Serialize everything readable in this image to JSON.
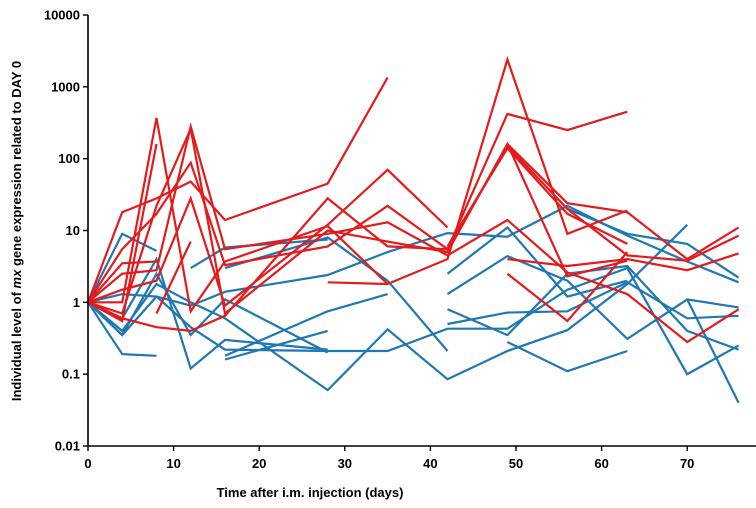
{
  "chart_data": {
    "type": "line",
    "xlabel": "Time after i.m. injection (days)",
    "ylabel_parts": [
      "Individual level of ",
      "mx",
      " gene expression related to DAY 0"
    ],
    "y_scale": "log",
    "xlim": [
      0,
      76
    ],
    "ylim": [
      0.01,
      10000
    ],
    "x_ticks": [
      0,
      10,
      20,
      30,
      40,
      50,
      60,
      70
    ],
    "y_ticks": [
      0.01,
      0.1,
      1,
      10,
      100,
      1000,
      10000
    ],
    "y_tick_labels": [
      "0.01",
      "0.1",
      "1",
      "10",
      "100",
      "1000",
      "10000"
    ],
    "grid": false,
    "legend": "none",
    "series_colors": {
      "blue": "#1f77b4",
      "red": "#e41a1c"
    },
    "series": [
      {
        "color": "blue",
        "points": [
          [
            0,
            1
          ],
          [
            4,
            0.35
          ],
          [
            8,
            2.5
          ],
          [
            12,
            0.35
          ],
          [
            16,
            1.1
          ],
          [
            28,
            0.2
          ]
        ]
      },
      {
        "color": "blue",
        "points": [
          [
            0,
            1
          ],
          [
            4,
            0.19
          ],
          [
            8,
            0.18
          ]
        ]
      },
      {
        "color": "blue",
        "points": [
          [
            0,
            1
          ],
          [
            4,
            0.6
          ],
          [
            8,
            4.0
          ],
          [
            12,
            0.12
          ],
          [
            16,
            0.3
          ],
          [
            28,
            0.22
          ]
        ]
      },
      {
        "color": "blue",
        "points": [
          [
            0,
            1
          ],
          [
            4,
            9.0
          ],
          [
            8,
            5.2
          ]
        ]
      },
      {
        "color": "blue",
        "points": [
          [
            0,
            1
          ],
          [
            4,
            1.3
          ],
          [
            8,
            1.2
          ],
          [
            12,
            0.9
          ],
          [
            16,
            1.4
          ],
          [
            28,
            2.4
          ],
          [
            35,
            5.0
          ],
          [
            42,
            9.2
          ],
          [
            49,
            8.2
          ],
          [
            56,
            22
          ],
          [
            63,
            8.5
          ],
          [
            70,
            3.7
          ],
          [
            76,
            1.9
          ]
        ]
      },
      {
        "color": "blue",
        "points": [
          [
            0,
            1
          ],
          [
            4,
            0.4
          ],
          [
            8,
            1.8
          ],
          [
            12,
            1.0
          ],
          [
            16,
            0.6
          ],
          [
            28,
            0.06
          ],
          [
            35,
            0.42
          ],
          [
            42,
            0.085
          ],
          [
            49,
            0.21
          ],
          [
            56,
            0.41
          ],
          [
            63,
            1.8
          ],
          [
            70,
            12
          ]
        ]
      },
      {
        "color": "blue",
        "points": [
          [
            0,
            1
          ],
          [
            4,
            0.35
          ],
          [
            8,
            1.2
          ],
          [
            12,
            0.45
          ],
          [
            16,
            0.22
          ],
          [
            28,
            0.21
          ],
          [
            35,
            0.21
          ],
          [
            42,
            0.43
          ],
          [
            49,
            0.43
          ],
          [
            56,
            1.5
          ],
          [
            63,
            3.0
          ],
          [
            70,
            0.1
          ],
          [
            76,
            0.25
          ]
        ]
      },
      {
        "color": "blue",
        "points": [
          [
            16,
            3.0
          ],
          [
            28,
            8.0
          ],
          [
            35,
            2.0
          ],
          [
            42,
            0.21
          ]
        ]
      },
      {
        "color": "blue",
        "points": [
          [
            12,
            3.0
          ],
          [
            16,
            5.8
          ],
          [
            28,
            7.5
          ]
        ]
      },
      {
        "color": "blue",
        "points": [
          [
            16,
            0.16
          ],
          [
            28,
            0.4
          ]
        ]
      },
      {
        "color": "blue",
        "points": [
          [
            16,
            0.18
          ],
          [
            28,
            0.75
          ],
          [
            35,
            1.3
          ]
        ]
      },
      {
        "color": "blue",
        "points": [
          [
            42,
            1.3
          ],
          [
            49,
            4.4
          ],
          [
            56,
            2.0
          ],
          [
            63,
            0.31
          ],
          [
            70,
            1.1
          ],
          [
            76,
            0.85
          ]
        ]
      },
      {
        "color": "blue",
        "points": [
          [
            42,
            2.5
          ],
          [
            49,
            11
          ],
          [
            56,
            1.2
          ],
          [
            63,
            2.0
          ]
        ]
      },
      {
        "color": "blue",
        "points": [
          [
            42,
            0.5
          ],
          [
            49,
            0.72
          ],
          [
            56,
            0.75
          ],
          [
            63,
            1.9
          ],
          [
            70,
            0.6
          ],
          [
            76,
            0.65
          ]
        ]
      },
      {
        "color": "blue",
        "points": [
          [
            42,
            0.8
          ],
          [
            49,
            0.35
          ],
          [
            56,
            2.5
          ],
          [
            63,
            3.2
          ],
          [
            70,
            0.4
          ],
          [
            76,
            0.22
          ]
        ]
      },
      {
        "color": "blue",
        "points": [
          [
            49,
            0.28
          ],
          [
            56,
            0.11
          ],
          [
            63,
            0.21
          ]
        ]
      },
      {
        "color": "blue",
        "points": [
          [
            56,
            20
          ],
          [
            63,
            9.0
          ],
          [
            70,
            6.5
          ],
          [
            76,
            2.2
          ]
        ]
      },
      {
        "color": "blue",
        "points": [
          [
            70,
            1.1
          ],
          [
            76,
            0.04
          ]
        ]
      },
      {
        "color": "red",
        "points": [
          [
            0,
            1
          ],
          [
            4,
            1.0
          ],
          [
            8,
            370
          ],
          [
            12,
            0.75
          ],
          [
            16,
            3.7
          ],
          [
            28,
            11.5
          ],
          [
            35,
            1.8
          ],
          [
            42,
            4.0
          ],
          [
            49,
            2400
          ],
          [
            56,
            9.0
          ],
          [
            63,
            19
          ]
        ]
      },
      {
        "color": "red",
        "points": [
          [
            0,
            1
          ],
          [
            4,
            0.55
          ],
          [
            8,
            160
          ]
        ]
      },
      {
        "color": "red",
        "points": [
          [
            0,
            1
          ],
          [
            4,
            0.7
          ],
          [
            8,
            22
          ],
          [
            12,
            260
          ],
          [
            16,
            0.7
          ],
          [
            28,
            10
          ],
          [
            35,
            7.0
          ],
          [
            42,
            5.0
          ],
          [
            49,
            160
          ],
          [
            56,
            2.3
          ],
          [
            63,
            3.8
          ]
        ]
      },
      {
        "color": "red",
        "points": [
          [
            0,
            1
          ],
          [
            4,
            18
          ],
          [
            8,
            28
          ],
          [
            12,
            48
          ],
          [
            16,
            14
          ],
          [
            28,
            45
          ],
          [
            35,
            1350
          ]
        ]
      },
      {
        "color": "red",
        "points": [
          [
            0,
            1
          ],
          [
            4,
            0.6
          ],
          [
            8,
            0.45
          ],
          [
            12,
            0.4
          ],
          [
            16,
            0.65
          ],
          [
            28,
            28
          ],
          [
            35,
            6.0
          ],
          [
            42,
            5.5
          ],
          [
            49,
            420
          ],
          [
            56,
            250
          ],
          [
            63,
            450
          ]
        ]
      },
      {
        "color": "red",
        "points": [
          [
            0,
            1
          ],
          [
            4,
            3.5
          ],
          [
            8,
            3.7
          ]
        ]
      },
      {
        "color": "red",
        "points": [
          [
            0,
            1
          ],
          [
            4,
            2.5
          ],
          [
            8,
            2.8
          ],
          [
            12,
            280
          ],
          [
            16,
            5.5
          ],
          [
            28,
            9.0
          ],
          [
            35,
            13
          ],
          [
            42,
            4.5
          ],
          [
            49,
            14
          ],
          [
            56,
            2.6
          ],
          [
            63,
            1.3
          ],
          [
            70,
            0.28
          ],
          [
            76,
            0.8
          ]
        ]
      },
      {
        "color": "red",
        "points": [
          [
            0,
            1
          ],
          [
            4,
            5.5
          ],
          [
            8,
            17
          ],
          [
            12,
            88
          ],
          [
            16,
            3.3
          ],
          [
            28,
            6.0
          ],
          [
            35,
            22
          ],
          [
            42,
            5.5
          ],
          [
            49,
            150
          ],
          [
            56,
            20
          ],
          [
            63,
            4.5
          ],
          [
            70,
            3.8
          ],
          [
            76,
            8.5
          ]
        ]
      },
      {
        "color": "red",
        "points": [
          [
            0,
            1
          ],
          [
            4,
            1.5
          ],
          [
            8,
            2.0
          ],
          [
            12,
            28
          ],
          [
            16,
            0.9
          ],
          [
            28,
            12
          ],
          [
            35,
            70
          ],
          [
            42,
            11
          ]
        ]
      },
      {
        "color": "red",
        "points": [
          [
            8,
            0.7
          ],
          [
            12,
            7.0
          ]
        ]
      },
      {
        "color": "red",
        "points": [
          [
            28,
            1.9
          ],
          [
            35,
            1.8
          ]
        ]
      },
      {
        "color": "red",
        "points": [
          [
            42,
            6.0
          ],
          [
            49,
            140
          ],
          [
            56,
            17
          ],
          [
            63,
            6.5
          ]
        ]
      },
      {
        "color": "red",
        "points": [
          [
            49,
            2.5
          ],
          [
            56,
            0.55
          ],
          [
            63,
            5.0
          ]
        ]
      },
      {
        "color": "red",
        "points": [
          [
            49,
            4.0
          ],
          [
            56,
            3.2
          ],
          [
            63,
            4.0
          ],
          [
            70,
            2.8
          ],
          [
            76,
            4.8
          ]
        ]
      },
      {
        "color": "red",
        "points": [
          [
            49,
            160
          ],
          [
            56,
            24
          ],
          [
            63,
            18
          ],
          [
            70,
            4.0
          ],
          [
            76,
            11
          ]
        ]
      }
    ]
  }
}
